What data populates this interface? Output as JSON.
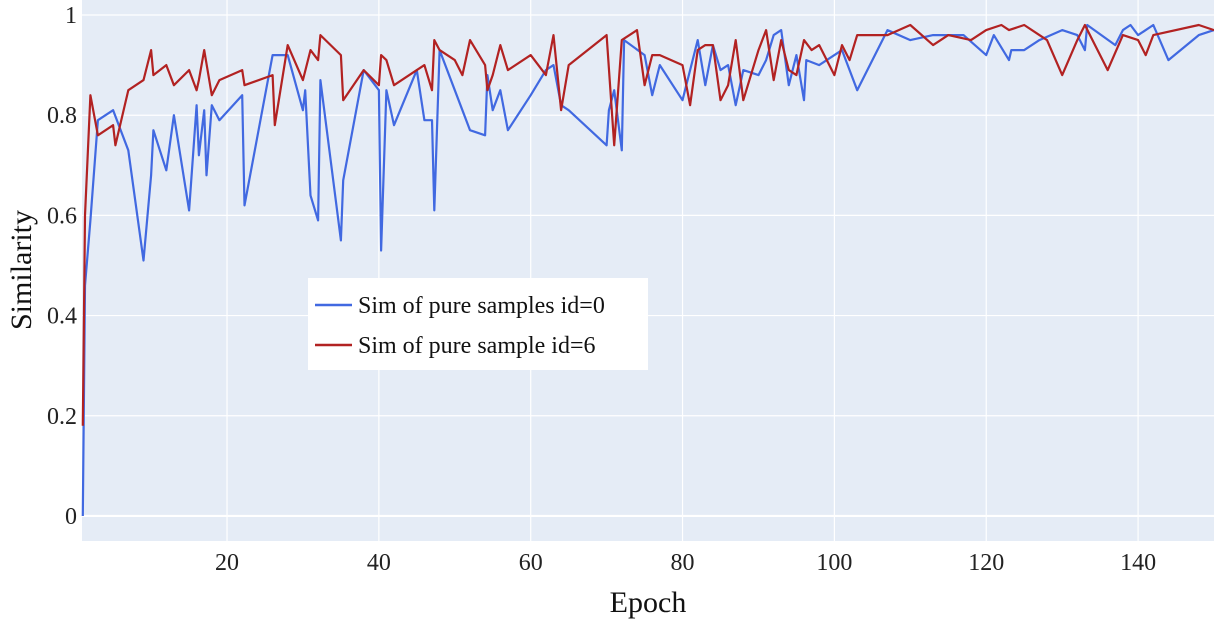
{
  "chart_data": {
    "type": "line",
    "xlabel": "Epoch",
    "ylabel": "Similarity",
    "xlim": [
      0.9,
      150
    ],
    "ylim": [
      -0.05,
      1.03
    ],
    "x_ticks": [
      20,
      40,
      60,
      80,
      100,
      120,
      140
    ],
    "y_ticks": [
      0,
      0.2,
      0.4,
      0.6,
      0.8,
      1
    ],
    "y_tick_labels": [
      "0",
      "0.2",
      "0.4",
      "0.6",
      "0.8",
      "1"
    ],
    "grid": true,
    "legend_position": "center-left",
    "background_color": "#e5ecf6",
    "series": [
      {
        "name": "Sim of pure samples id=0",
        "color": "#4169e1",
        "x": [
          1,
          1.3,
          2,
          3,
          5,
          7,
          9,
          10,
          10.3,
          12,
          13,
          15,
          16,
          16.3,
          17,
          17.3,
          18,
          19,
          22,
          22.3,
          26,
          28,
          30,
          30.3,
          31,
          32,
          32.3,
          35,
          35.3,
          38,
          40,
          40.3,
          41,
          42,
          45,
          46,
          47,
          47.3,
          48,
          50,
          51,
          52,
          54,
          54.3,
          55,
          56,
          57,
          60,
          62,
          63,
          64,
          65,
          70,
          70.3,
          71,
          72,
          72.3,
          75,
          76,
          77,
          80,
          82,
          83,
          84,
          85,
          86,
          87,
          88,
          90,
          91,
          92,
          93,
          94,
          95,
          96,
          96.3,
          98,
          101,
          102,
          103,
          107,
          110,
          113,
          115,
          117,
          120,
          121,
          123,
          123.3,
          125,
          127,
          130,
          132,
          133,
          133.3,
          137,
          138,
          139,
          140,
          141,
          142,
          144,
          148,
          150
        ],
        "y": [
          0.0,
          0.46,
          0.59,
          0.79,
          0.81,
          0.73,
          0.51,
          0.68,
          0.77,
          0.69,
          0.8,
          0.61,
          0.82,
          0.72,
          0.81,
          0.68,
          0.82,
          0.79,
          0.84,
          0.62,
          0.92,
          0.92,
          0.81,
          0.85,
          0.64,
          0.59,
          0.87,
          0.55,
          0.67,
          0.89,
          0.85,
          0.53,
          0.85,
          0.78,
          0.89,
          0.79,
          0.79,
          0.61,
          0.93,
          0.85,
          0.81,
          0.77,
          0.76,
          0.88,
          0.81,
          0.85,
          0.77,
          0.84,
          0.89,
          0.9,
          0.82,
          0.81,
          0.74,
          0.81,
          0.85,
          0.73,
          0.95,
          0.92,
          0.84,
          0.9,
          0.83,
          0.95,
          0.86,
          0.94,
          0.89,
          0.9,
          0.82,
          0.89,
          0.88,
          0.91,
          0.96,
          0.97,
          0.86,
          0.92,
          0.83,
          0.91,
          0.9,
          0.93,
          0.89,
          0.85,
          0.97,
          0.95,
          0.96,
          0.96,
          0.96,
          0.92,
          0.96,
          0.91,
          0.93,
          0.93,
          0.95,
          0.97,
          0.96,
          0.93,
          0.98,
          0.94,
          0.97,
          0.98,
          0.96,
          0.97,
          0.98,
          0.91,
          0.96,
          0.97
        ]
      },
      {
        "name": "Sim of pure sample id=6",
        "color": "#b22222",
        "x": [
          1,
          1.3,
          2,
          3,
          5,
          5.3,
          7,
          9,
          10,
          10.3,
          12,
          13,
          15,
          16,
          16.3,
          17,
          18,
          19,
          22,
          22.3,
          26,
          26.3,
          28,
          30,
          31,
          32,
          32.3,
          35,
          35.3,
          38,
          40,
          40.3,
          41,
          42,
          45,
          46,
          47,
          47.3,
          48,
          50,
          51,
          52,
          54,
          54.3,
          55,
          56,
          57,
          60,
          62,
          63,
          64,
          65,
          70,
          71,
          72,
          74,
          75,
          76,
          77,
          80,
          81,
          82,
          83,
          84,
          85,
          86,
          87,
          88,
          90,
          91,
          92,
          93,
          94,
          95,
          96,
          97,
          98,
          100,
          101,
          102,
          103,
          107,
          110,
          113,
          115,
          118,
          120,
          122,
          123,
          125,
          127,
          128,
          130,
          132,
          133,
          134,
          136,
          138,
          140,
          141,
          142,
          148,
          150
        ],
        "y": [
          0.18,
          0.6,
          0.84,
          0.76,
          0.78,
          0.74,
          0.85,
          0.87,
          0.93,
          0.88,
          0.9,
          0.86,
          0.89,
          0.85,
          0.87,
          0.93,
          0.84,
          0.87,
          0.89,
          0.86,
          0.88,
          0.78,
          0.94,
          0.87,
          0.93,
          0.91,
          0.96,
          0.92,
          0.83,
          0.89,
          0.86,
          0.92,
          0.91,
          0.86,
          0.89,
          0.9,
          0.85,
          0.95,
          0.93,
          0.91,
          0.88,
          0.95,
          0.9,
          0.85,
          0.88,
          0.94,
          0.89,
          0.92,
          0.88,
          0.96,
          0.81,
          0.9,
          0.96,
          0.74,
          0.95,
          0.97,
          0.86,
          0.92,
          0.92,
          0.9,
          0.82,
          0.93,
          0.94,
          0.94,
          0.83,
          0.86,
          0.95,
          0.83,
          0.93,
          0.97,
          0.87,
          0.95,
          0.89,
          0.88,
          0.95,
          0.93,
          0.94,
          0.88,
          0.94,
          0.91,
          0.96,
          0.96,
          0.98,
          0.94,
          0.96,
          0.95,
          0.97,
          0.98,
          0.97,
          0.98,
          0.96,
          0.95,
          0.88,
          0.95,
          0.98,
          0.95,
          0.89,
          0.96,
          0.95,
          0.92,
          0.96,
          0.98,
          0.97
        ]
      }
    ]
  }
}
